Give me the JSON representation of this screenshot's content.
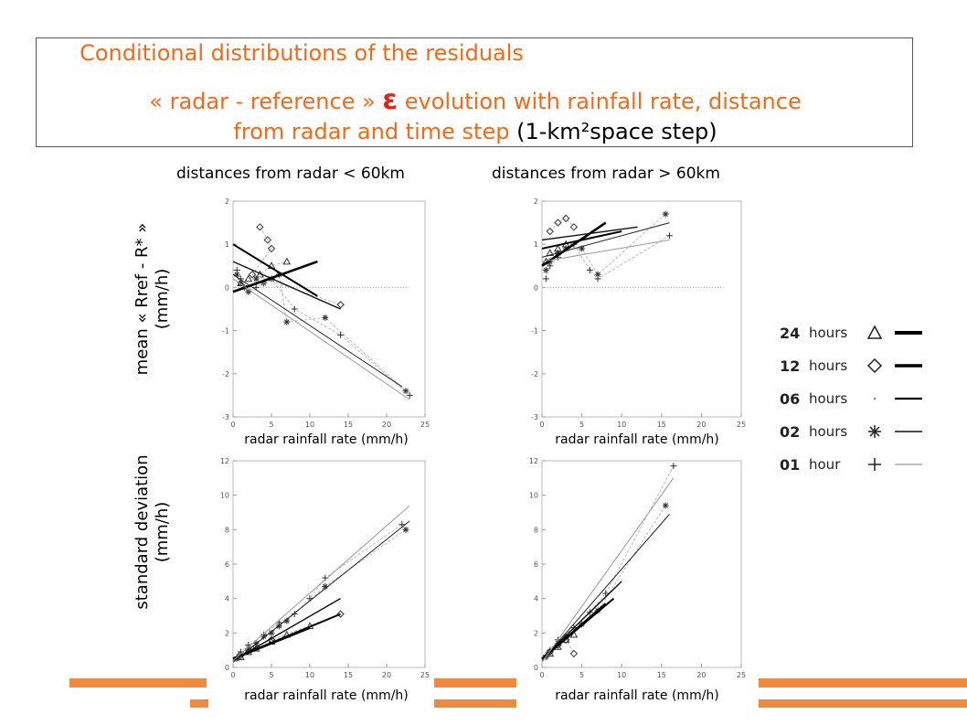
{
  "title": {
    "line1": "Conditional  distributions of the residuals",
    "line2_prefix": "« radar - reference » ",
    "line2_symbol": "ε",
    "line2_suffix": " evolution with rainfall rate, distance",
    "line3_orange": "from radar and time step ",
    "line3_black": "(1-km²space step)"
  },
  "column_headers": [
    "distances from radar < 60km",
    "distances from radar > 60km"
  ],
  "row_labels": {
    "mean": [
      "mean « Rref - R* »",
      "(mm/h)"
    ],
    "std": [
      "standard deviation",
      "(mm/h)"
    ]
  },
  "legend": {
    "entries": [
      {
        "code": "24",
        "label": "hours",
        "marker": "triangle",
        "line_weight": "heavy"
      },
      {
        "code": "12",
        "label": "hours",
        "marker": "diamond",
        "line_weight": "heavy"
      },
      {
        "code": "06",
        "label": "hours",
        "marker": "dot",
        "line_weight": "medium"
      },
      {
        "code": "02",
        "label": "hours",
        "marker": "asterisk",
        "line_weight": "thin"
      },
      {
        "code": "01",
        "label": "hour",
        "marker": "plus",
        "line_weight": "light-gray"
      }
    ]
  },
  "colors": {
    "title_orange": "#ee6a1c",
    "epsilon_red": "#d8281c",
    "bar_orange": "#f08a3c"
  },
  "chart_data": [
    {
      "type": "scatter",
      "panel": "mean, distances from radar < 60km",
      "xlabel": "radar rainfall rate (mm/h)",
      "xlim": [
        0,
        25
      ],
      "ylim": [
        -3,
        2
      ],
      "xticks": [
        0,
        5,
        10,
        15,
        20,
        25
      ],
      "yticks": [
        -3,
        -2,
        -1,
        0,
        1,
        2
      ],
      "zero_line": true,
      "fit_lines": [
        {
          "series": "24 hours",
          "x": [
            0,
            11
          ],
          "y": [
            -0.1,
            0.6
          ]
        },
        {
          "series": "12 hours",
          "x": [
            0,
            11
          ],
          "y": [
            1.0,
            -0.2
          ]
        },
        {
          "series": "06 hours",
          "x": [
            0,
            14
          ],
          "y": [
            0.6,
            -0.5
          ]
        },
        {
          "series": "02 hours",
          "x": [
            0,
            22
          ],
          "y": [
            0.3,
            -2.3
          ]
        },
        {
          "series": "01 hour",
          "x": [
            0,
            23
          ],
          "y": [
            0.2,
            -2.6
          ]
        }
      ],
      "points": [
        {
          "series": "24 hours",
          "x": [
            1,
            2,
            3.5,
            5,
            7
          ],
          "y": [
            0.1,
            0.2,
            0.3,
            0.5,
            0.6
          ]
        },
        {
          "series": "12 hours",
          "x": [
            3.5,
            4.5,
            5,
            2.5,
            14
          ],
          "y": [
            1.4,
            1.1,
            0.9,
            0.3,
            -0.4
          ]
        },
        {
          "series": "02 hours",
          "x": [
            0.5,
            1,
            1.5,
            2,
            3,
            4,
            5,
            6,
            7,
            12,
            22.5
          ],
          "y": [
            0.3,
            0.1,
            0,
            -0.1,
            0.2,
            0.1,
            0.2,
            0.3,
            -0.8,
            -0.7,
            -2.4
          ]
        },
        {
          "series": "01 hour",
          "x": [
            0.5,
            1,
            2,
            3,
            5,
            8,
            14,
            23
          ],
          "y": [
            0.4,
            0.2,
            -0.1,
            0,
            0.2,
            -0.5,
            -1.1,
            -2.5
          ]
        }
      ]
    },
    {
      "type": "scatter",
      "panel": "mean, distances from radar > 60km",
      "xlabel": "radar rainfall rate (mm/h)",
      "xlim": [
        0,
        25
      ],
      "ylim": [
        -3,
        2
      ],
      "xticks": [
        0,
        5,
        10,
        15,
        20,
        25
      ],
      "yticks": [
        -3,
        -2,
        -1,
        0,
        1,
        2
      ],
      "zero_line": true,
      "fit_lines": [
        {
          "series": "24 hours",
          "x": [
            0,
            8
          ],
          "y": [
            0.5,
            1.5
          ]
        },
        {
          "series": "12 hours",
          "x": [
            0,
            10
          ],
          "y": [
            0.9,
            1.3
          ]
        },
        {
          "series": "06 hours",
          "x": [
            0,
            12
          ],
          "y": [
            1.1,
            1.4
          ]
        },
        {
          "series": "02 hours",
          "x": [
            0,
            16
          ],
          "y": [
            0.7,
            1.5
          ]
        },
        {
          "series": "01 hour",
          "x": [
            0,
            16
          ],
          "y": [
            0.6,
            1.1
          ]
        }
      ],
      "points": [
        {
          "series": "24 hours",
          "x": [
            0.5,
            1,
            2,
            3
          ],
          "y": [
            0.6,
            0.8,
            0.9,
            1.0
          ]
        },
        {
          "series": "12 hours",
          "x": [
            1,
            2,
            3,
            4
          ],
          "y": [
            1.3,
            1.5,
            1.6,
            1.4
          ]
        },
        {
          "series": "02 hours",
          "x": [
            0.5,
            1,
            2,
            3,
            5,
            7,
            15.5
          ],
          "y": [
            0.4,
            0.6,
            0.8,
            0.9,
            0.9,
            0.3,
            1.7
          ]
        },
        {
          "series": "01 hour",
          "x": [
            0.5,
            1,
            2,
            4,
            6,
            7,
            16
          ],
          "y": [
            0.2,
            0.5,
            0.7,
            1.0,
            0.4,
            0.2,
            1.2
          ]
        }
      ]
    },
    {
      "type": "scatter",
      "panel": "standard deviation, distances from radar < 60km",
      "xlabel": "radar rainfall rate (mm/h)",
      "xlim": [
        0,
        25
      ],
      "ylim": [
        0,
        12
      ],
      "xticks": [
        0,
        5,
        10,
        15,
        20,
        25
      ],
      "yticks": [
        0,
        2,
        4,
        6,
        8,
        10,
        12
      ],
      "fit_lines": [
        {
          "series": "24 hours",
          "x": [
            0,
            10
          ],
          "y": [
            0.5,
            2.3
          ]
        },
        {
          "series": "12 hours",
          "x": [
            0,
            14
          ],
          "y": [
            0.5,
            3.1
          ]
        },
        {
          "series": "06 hours",
          "x": [
            0,
            14
          ],
          "y": [
            0.4,
            4.0
          ]
        },
        {
          "series": "02 hours",
          "x": [
            0,
            23
          ],
          "y": [
            0.3,
            8.5
          ]
        },
        {
          "series": "01 hour",
          "x": [
            0,
            23
          ],
          "y": [
            0.4,
            9.4
          ]
        }
      ],
      "points": [
        {
          "series": "24 hours",
          "x": [
            1,
            2,
            3,
            5,
            7,
            10
          ],
          "y": [
            0.6,
            0.9,
            1.1,
            1.5,
            1.9,
            2.4
          ]
        },
        {
          "series": "12 hours",
          "x": [
            1,
            2,
            3,
            5,
            14
          ],
          "y": [
            0.7,
            1.0,
            1.2,
            1.6,
            3.1
          ]
        },
        {
          "series": "02 hours",
          "x": [
            0.5,
            1,
            2,
            3,
            4,
            5,
            6,
            7,
            12,
            22.5
          ],
          "y": [
            0.5,
            0.8,
            1.1,
            1.4,
            1.8,
            2.0,
            2.4,
            2.7,
            4.7,
            8.0
          ]
        },
        {
          "series": "01 hour",
          "x": [
            0.5,
            1,
            2,
            4,
            6,
            8,
            10,
            12,
            22
          ],
          "y": [
            0.6,
            0.9,
            1.3,
            1.9,
            2.6,
            3.1,
            4.0,
            5.2,
            8.3
          ]
        }
      ]
    },
    {
      "type": "scatter",
      "panel": "standard deviation, distances from radar > 60km",
      "xlabel": "radar rainfall rate (mm/h)",
      "xlim": [
        0,
        25
      ],
      "ylim": [
        0,
        12
      ],
      "xticks": [
        0,
        5,
        10,
        15,
        20,
        25
      ],
      "yticks": [
        0,
        2,
        4,
        6,
        8,
        10,
        12
      ],
      "fit_lines": [
        {
          "series": "24 hours",
          "x": [
            0,
            8
          ],
          "y": [
            0.5,
            3.7
          ]
        },
        {
          "series": "12 hours",
          "x": [
            0,
            9
          ],
          "y": [
            0.5,
            4.0
          ]
        },
        {
          "series": "06 hours",
          "x": [
            0,
            10
          ],
          "y": [
            0.5,
            5.0
          ]
        },
        {
          "series": "02 hours",
          "x": [
            0,
            16
          ],
          "y": [
            0.4,
            8.9
          ]
        },
        {
          "series": "01 hour",
          "x": [
            0,
            16.5
          ],
          "y": [
            0.3,
            11.0
          ]
        }
      ],
      "points": [
        {
          "series": "24 hours",
          "x": [
            1,
            2,
            3,
            4
          ],
          "y": [
            0.8,
            1.2,
            1.6,
            1.9
          ]
        },
        {
          "series": "12 hours",
          "x": [
            1,
            2,
            3,
            4
          ],
          "y": [
            0.9,
            1.3,
            1.6,
            0.8
          ]
        },
        {
          "series": "02 hours",
          "x": [
            0.5,
            1,
            2,
            3,
            5,
            7,
            15.5
          ],
          "y": [
            0.6,
            0.9,
            1.4,
            1.8,
            2.5,
            3.3,
            9.4
          ]
        },
        {
          "series": "01 hour",
          "x": [
            0.5,
            1,
            2,
            4,
            6,
            8,
            16.5
          ],
          "y": [
            0.7,
            1.0,
            1.6,
            2.3,
            3.2,
            4.3,
            11.7
          ]
        }
      ]
    }
  ]
}
